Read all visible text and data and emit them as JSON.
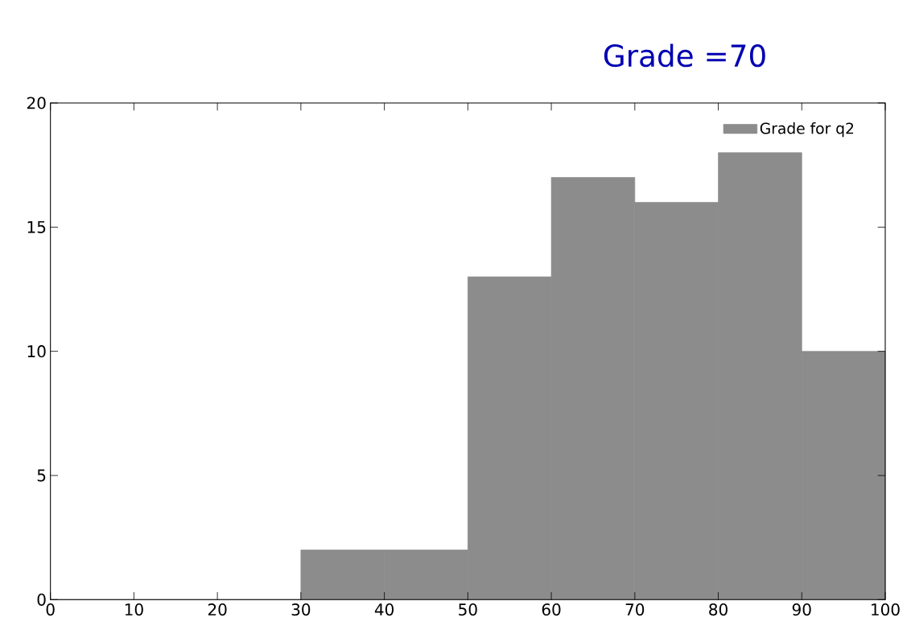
{
  "chart_data": {
    "type": "histogram",
    "bins": [
      0,
      10,
      20,
      30,
      40,
      50,
      60,
      70,
      80,
      90,
      100
    ],
    "series": [
      {
        "name": "Grade for q2",
        "color": "#8c8c8c",
        "values": [
          0,
          0,
          0,
          2,
          2,
          13,
          17,
          16,
          18,
          10
        ]
      }
    ],
    "xlim": [
      0,
      100
    ],
    "xticks": [
      0,
      10,
      20,
      30,
      40,
      50,
      60,
      70,
      80,
      90,
      100
    ],
    "ylim": [
      0,
      20
    ],
    "yticks": [
      0,
      5,
      10,
      15,
      20
    ],
    "legend": "top right",
    "annotations": [
      "Grade =70"
    ]
  }
}
